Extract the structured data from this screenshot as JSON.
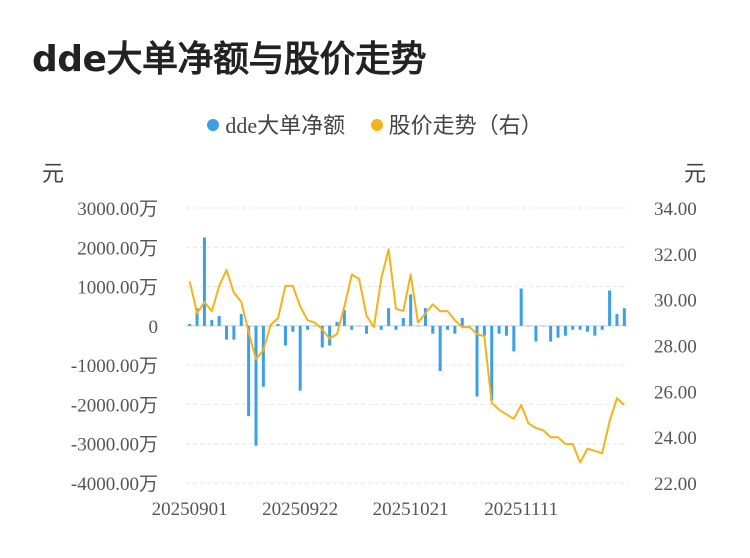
{
  "title": "dde大单净额与股价走势",
  "legend": {
    "bar": "dde大单净额",
    "line": "股价走势（右）"
  },
  "units": {
    "left": "元",
    "right": "元"
  },
  "colors": {
    "bar": "#3ba0e6",
    "line": "#f5b31a",
    "grid": "#e6e6e6"
  },
  "chart_data": {
    "type": "bar+line",
    "left_axis": {
      "ticks": [
        "3000.00万",
        "2000.00万",
        "1000.00万",
        "0",
        "-1000.00万",
        "-2000.00万",
        "-3000.00万",
        "-4000.00万"
      ],
      "tick_values": [
        3000,
        2000,
        1000,
        0,
        -1000,
        -2000,
        -3000,
        -4000
      ],
      "ylim": [
        -4000,
        3000
      ],
      "unit": "万元"
    },
    "right_axis": {
      "ticks": [
        "34.00",
        "32.00",
        "30.00",
        "28.00",
        "26.00",
        "24.00",
        "22.00"
      ],
      "tick_values": [
        34,
        32,
        30,
        28,
        26,
        24,
        22
      ],
      "ylim": [
        22,
        34
      ]
    },
    "x_labels": [
      {
        "index": 0,
        "label": "20250901"
      },
      {
        "index": 15,
        "label": "20250922"
      },
      {
        "index": 30,
        "label": "20251021"
      },
      {
        "index": 45,
        "label": "20251111"
      }
    ],
    "bar_series": {
      "name": "dde大单净额",
      "values": [
        50,
        450,
        2250,
        150,
        250,
        -350,
        -350,
        300,
        -2300,
        -3050,
        -1550,
        0,
        50,
        -500,
        -150,
        -1650,
        -100,
        0,
        -550,
        -500,
        100,
        400,
        -100,
        0,
        -200,
        0,
        -100,
        450,
        -100,
        200,
        800,
        0,
        450,
        -200,
        -1150,
        -100,
        -200,
        200,
        0,
        -1800,
        -250,
        -1900,
        -200,
        -250,
        -650,
        950,
        0,
        -400,
        0,
        -400,
        -300,
        -250,
        -100,
        -100,
        -150,
        -250,
        -100,
        900,
        300,
        450
      ]
    },
    "line_series": {
      "name": "股价走势",
      "values": [
        30.8,
        29.4,
        29.9,
        29.5,
        30.6,
        31.3,
        30.3,
        29.9,
        28.6,
        27.4,
        27.8,
        28.9,
        29.2,
        30.6,
        30.6,
        29.7,
        29.1,
        29.0,
        28.7,
        28.3,
        28.5,
        29.7,
        31.1,
        30.9,
        29.3,
        28.8,
        30.9,
        32.2,
        29.6,
        29.5,
        31.1,
        29.0,
        29.4,
        29.8,
        29.5,
        29.5,
        29.1,
        28.8,
        28.8,
        28.5,
        28.4,
        25.5,
        25.2,
        25.0,
        24.8,
        25.4,
        24.6,
        24.4,
        24.3,
        24.0,
        24.0,
        23.7,
        23.7,
        22.9,
        23.5,
        23.4,
        23.3,
        24.7,
        25.7,
        25.4
      ]
    }
  }
}
